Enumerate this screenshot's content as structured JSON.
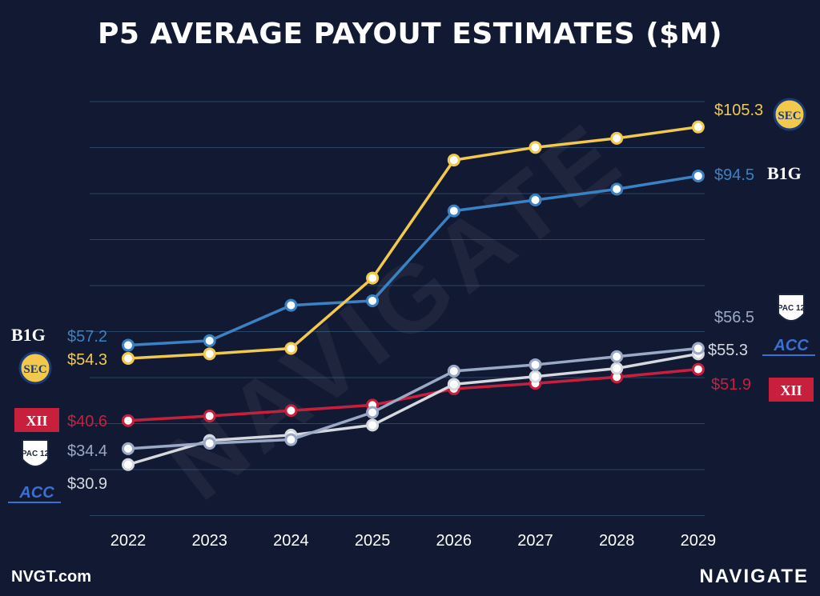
{
  "chart_data": {
    "type": "line",
    "title": "P5 AVERAGE PAYOUT ESTIMATES ($M)",
    "x": [
      "2022",
      "2023",
      "2024",
      "2025",
      "2026",
      "2027",
      "2028",
      "2029"
    ],
    "ylim": [
      20,
      110
    ],
    "grid": true,
    "series": [
      {
        "name": "SEC",
        "color": "#f2c94c",
        "values": [
          54.3,
          55.3,
          56.5,
          72.0,
          98.0,
          100.8,
          102.8,
          105.3
        ],
        "start_label": "$54.3",
        "end_label": "$105.3"
      },
      {
        "name": "B1G",
        "color": "#3b82c4",
        "values": [
          57.2,
          58.2,
          66.0,
          67.0,
          86.8,
          89.2,
          91.6,
          94.5
        ],
        "start_label": "$57.2",
        "end_label": "$94.5"
      },
      {
        "name": "PAC-12",
        "color": "#9aa9c6",
        "values": [
          34.4,
          35.6,
          36.4,
          42.4,
          51.5,
          52.9,
          54.7,
          56.5
        ],
        "start_label": "$34.4",
        "end_label": "$56.5"
      },
      {
        "name": "ACC",
        "color": "#d6d9e0",
        "values": [
          30.9,
          36.2,
          37.4,
          39.6,
          48.6,
          50.3,
          52.1,
          55.3
        ],
        "start_label": "$30.9",
        "end_label": "$55.3"
      },
      {
        "name": "XII",
        "color": "#c8203c",
        "values": [
          40.6,
          41.6,
          42.8,
          44.0,
          47.6,
          48.8,
          50.2,
          51.9
        ],
        "start_label": "$40.6",
        "end_label": "$51.9"
      }
    ]
  },
  "watermark": "NAVIGATE",
  "footer": {
    "left": "NVGT.com",
    "right": "NAVIGATE"
  },
  "logos": {
    "big": "B1G",
    "sec": "SEC",
    "pac": "PAC 12",
    "acc": "ACC",
    "xii": "XII"
  }
}
